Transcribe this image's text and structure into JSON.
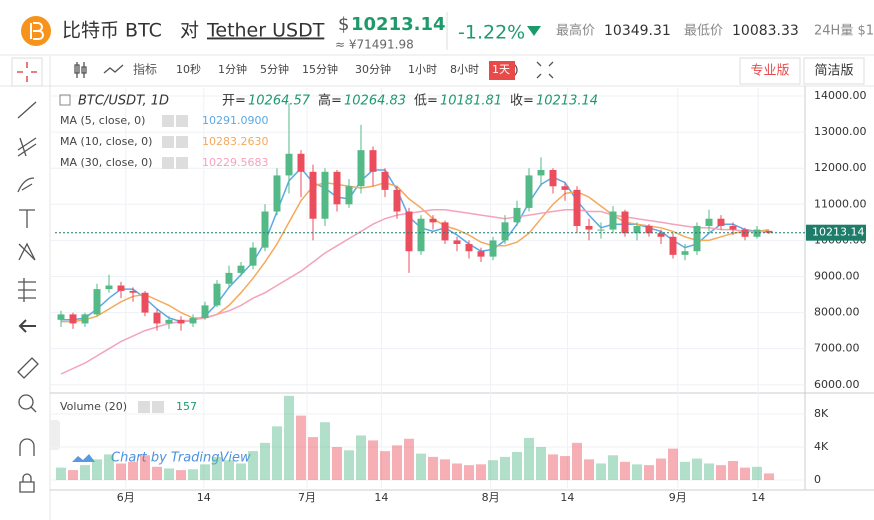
{
  "header": {
    "pair_title": "比特币 BTC",
    "vs": "对",
    "quote": "Tether USDT",
    "currency": "$",
    "cny": "≈ ¥71491.98",
    "change": "-1.22%",
    "high_label": "最高价",
    "high": "10349.31",
    "low_label": "最低价",
    "low": "10083.33",
    "vol_label": "24H量 $1"
  },
  "toolbar": {
    "indicator": "指标",
    "intervals": [
      "10秒",
      "1分钟",
      "5分钟",
      "15分钟",
      "30分钟",
      "1小时",
      "8小时",
      "1天"
    ],
    "active": 7,
    "modes": [
      "专业版",
      "简洁版"
    ],
    "active_mode": 0
  },
  "chart_data": {
    "type": "candlestick",
    "symbol": "BTC/USDT, 1D",
    "labels": {
      "open": "开=",
      "high": "高=",
      "low": "低=",
      "close": "收="
    },
    "watermark": "Chart by TradingView",
    "up_color": "#53b987",
    "down_color": "#eb4d5c",
    "open": [
      7800,
      7950,
      7700,
      7950,
      8650,
      8750,
      8600,
      8550,
      8000,
      7700,
      7800,
      7700,
      7850,
      8200,
      8800,
      9100,
      9300,
      9800,
      10800,
      11800,
      12400,
      11900,
      10600,
      11900,
      11000,
      11500,
      12500,
      11900,
      11400,
      10800,
      9700,
      10600,
      10500,
      10000,
      9900,
      9700,
      9550,
      10000,
      10500,
      10900,
      11800,
      11950,
      11500,
      11400,
      10400,
      10300,
      10300,
      10800,
      10200,
      10400,
      10200,
      10100,
      9600,
      9700,
      10400,
      10600,
      10400,
      10300,
      10100,
      10264.57
    ],
    "high": [
      8050,
      8000,
      8000,
      8800,
      9050,
      8850,
      8700,
      8600,
      8100,
      7900,
      7900,
      7950,
      8300,
      8900,
      9300,
      9400,
      9950,
      11000,
      12000,
      13800,
      12500,
      12100,
      12000,
      11950,
      11700,
      13200,
      12600,
      12000,
      11500,
      10900,
      10700,
      10700,
      10550,
      10100,
      10000,
      9800,
      10100,
      10700,
      11100,
      12000,
      12300,
      12000,
      11600,
      11500,
      10600,
      10500,
      10950,
      10850,
      10500,
      10450,
      10300,
      10200,
      9900,
      10500,
      10850,
      10700,
      10500,
      10350,
      10400,
      10264.83
    ],
    "low": [
      7600,
      7550,
      7600,
      7900,
      8550,
      8400,
      8300,
      7900,
      7500,
      7550,
      7500,
      7600,
      7800,
      8150,
      8700,
      9000,
      9200,
      9700,
      10700,
      11300,
      11200,
      10000,
      10400,
      10800,
      10900,
      11300,
      11500,
      11200,
      10600,
      9100,
      9600,
      10300,
      9900,
      9700,
      9500,
      9400,
      9450,
      9900,
      10400,
      10800,
      11500,
      11300,
      11100,
      10200,
      10000,
      10050,
      10200,
      10100,
      10000,
      10100,
      9900,
      9500,
      9450,
      9600,
      10250,
      10300,
      10150,
      10000,
      10050,
      10181.81
    ],
    "close": [
      7950,
      7700,
      7950,
      8650,
      8750,
      8600,
      8550,
      8000,
      7700,
      7800,
      7700,
      7850,
      8200,
      8800,
      9100,
      9300,
      9800,
      10800,
      11800,
      12400,
      11900,
      10600,
      11900,
      11000,
      11500,
      12500,
      11900,
      11400,
      10800,
      9700,
      10600,
      10500,
      10000,
      9900,
      9700,
      9550,
      10000,
      10500,
      10900,
      11800,
      11950,
      11500,
      11400,
      10400,
      10300,
      10300,
      10800,
      10200,
      10400,
      10200,
      10100,
      9600,
      9700,
      10400,
      10600,
      10400,
      10300,
      10100,
      10300,
      10213.14
    ],
    "ma_series": [
      {
        "name": "MA (5, close, 0)",
        "color": "#5aa9e6",
        "value_label": "10291.0900",
        "values": [
          7800,
          7800,
          7850,
          8100,
          8400,
          8650,
          8650,
          8400,
          8100,
          7850,
          7750,
          7780,
          7900,
          8250,
          8700,
          9050,
          9400,
          9950,
          10800,
          11650,
          12000,
          11600,
          11450,
          11200,
          11150,
          11650,
          11950,
          11950,
          11400,
          10650,
          10350,
          10250,
          10350,
          10150,
          9900,
          9700,
          9750,
          10000,
          10450,
          11050,
          11550,
          11750,
          11600,
          11100,
          10700,
          10350,
          10450,
          10450,
          10450,
          10350,
          10250,
          10000,
          9800,
          9900,
          10200,
          10450,
          10450,
          10300,
          10250,
          10291.09
        ]
      },
      {
        "name": "MA (10, close, 0)",
        "color": "#f5a95b",
        "value_label": "10283.2630",
        "values": [
          7750,
          7750,
          7800,
          7900,
          8100,
          8300,
          8450,
          8500,
          8350,
          8200,
          8000,
          7850,
          7850,
          7950,
          8200,
          8550,
          8950,
          9400,
          9900,
          10500,
          11100,
          11500,
          11600,
          11550,
          11500,
          11450,
          11500,
          11600,
          11500,
          11150,
          10900,
          10600,
          10400,
          10300,
          10150,
          9950,
          9850,
          9850,
          9950,
          10200,
          10600,
          11000,
          11300,
          11350,
          11200,
          10950,
          10700,
          10500,
          10450,
          10400,
          10350,
          10250,
          10100,
          10000,
          10000,
          10100,
          10200,
          10250,
          10250,
          10283.263
        ]
      },
      {
        "name": "MA (30, close, 0)",
        "color": "#f4a3bd",
        "value_label": "10229.5683",
        "values": [
          6300,
          6450,
          6600,
          6800,
          7000,
          7200,
          7350,
          7500,
          7600,
          7700,
          7750,
          7800,
          7850,
          7950,
          8050,
          8200,
          8400,
          8550,
          8750,
          8950,
          9150,
          9400,
          9650,
          9850,
          10050,
          10250,
          10450,
          10600,
          10700,
          10750,
          10800,
          10850,
          10850,
          10800,
          10750,
          10700,
          10650,
          10600,
          10650,
          10700,
          10750,
          10800,
          10850,
          10850,
          10800,
          10800,
          10700,
          10650,
          10600,
          10550,
          10500,
          10450,
          10400,
          10350,
          10350,
          10300,
          10300,
          10250,
          10250,
          10229.5683
        ]
      }
    ],
    "volume_name": "Volume (20)",
    "volume_label": "157",
    "volumes": [
      1.5,
      1.2,
      1.8,
      2.5,
      3.1,
      2.0,
      2.2,
      3.0,
      1.6,
      1.4,
      1.2,
      1.3,
      1.9,
      2.8,
      2.4,
      2.0,
      3.5,
      4.5,
      6.5,
      10.2,
      7.8,
      5.2,
      7.0,
      4.0,
      3.6,
      5.4,
      4.8,
      3.5,
      4.2,
      5.0,
      3.2,
      2.8,
      2.5,
      2.0,
      1.8,
      1.9,
      2.4,
      2.8,
      3.4,
      5.1,
      4.0,
      3.1,
      2.9,
      4.5,
      2.5,
      2.0,
      3.0,
      2.2,
      1.9,
      1.8,
      2.6,
      3.8,
      2.2,
      2.6,
      2.0,
      1.8,
      2.3,
      1.5,
      1.6,
      0.8
    ],
    "xlim": [
      -0.5,
      62
    ],
    "xticks": [
      {
        "value": 5.4,
        "label": "6月"
      },
      {
        "value": 11.9,
        "label": "14"
      },
      {
        "value": 20.5,
        "label": "7月"
      },
      {
        "value": 26.7,
        "label": "14"
      },
      {
        "value": 35.8,
        "label": "8月"
      },
      {
        "value": 42.2,
        "label": "14"
      },
      {
        "value": 51.4,
        "label": "9月"
      },
      {
        "value": 58.1,
        "label": "14"
      }
    ],
    "ylim": [
      5800,
      14222
    ],
    "yticks": [
      {
        "value": 6000,
        "label": "6000.00"
      },
      {
        "value": 7000,
        "label": "7000.00"
      },
      {
        "value": 8000,
        "label": "8000.00"
      },
      {
        "value": 9000,
        "label": "9000.00"
      },
      {
        "value": 10000,
        "label": "10000.00"
      },
      {
        "value": 11000,
        "label": "11000.00"
      },
      {
        "value": 12000,
        "label": "12000.00"
      },
      {
        "value": 13000,
        "label": "13000.00"
      },
      {
        "value": 14000,
        "label": "14000.00"
      }
    ],
    "vlim": [
      0,
      10.3
    ],
    "vticks": [
      0,
      {
        "value": 4,
        "label": "4K"
      },
      {
        "value": 8,
        "label": "8K"
      }
    ],
    "grid": true
  }
}
